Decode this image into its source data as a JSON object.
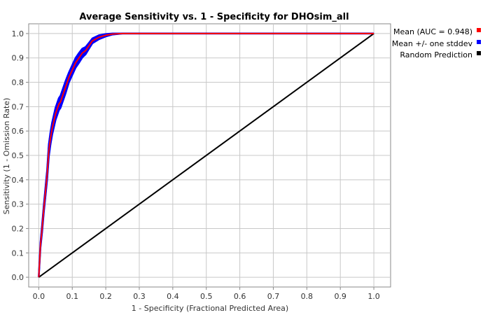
{
  "chart_data": {
    "type": "line",
    "title": "Average Sensitivity vs. 1 - Specificity for DHOsim_all",
    "xlabel": "1 - Specificity (Fractional Predicted Area)",
    "ylabel": "Sensitivity (1 - Omission Rate)",
    "xlim": [
      -0.03,
      1.05
    ],
    "ylim": [
      -0.04,
      1.04
    ],
    "xticks": [
      "0.0",
      "0.1",
      "0.2",
      "0.3",
      "0.4",
      "0.5",
      "0.6",
      "0.7",
      "0.8",
      "0.9",
      "1.0"
    ],
    "yticks": [
      "0.0",
      "0.1",
      "0.2",
      "0.3",
      "0.4",
      "0.5",
      "0.6",
      "0.7",
      "0.8",
      "0.9",
      "1.0"
    ],
    "grid": true,
    "legend_position": "right",
    "series": [
      {
        "name": "Mean (AUC = 0.948)",
        "color": "#ff0000",
        "x": [
          0.0,
          0.005,
          0.01,
          0.015,
          0.02,
          0.025,
          0.03,
          0.035,
          0.04,
          0.045,
          0.05,
          0.055,
          0.06,
          0.065,
          0.07,
          0.075,
          0.08,
          0.09,
          0.1,
          0.11,
          0.12,
          0.13,
          0.14,
          0.15,
          0.16,
          0.18,
          0.2,
          0.22,
          0.25,
          1.0
        ],
        "y": [
          0.0,
          0.13,
          0.2,
          0.28,
          0.35,
          0.42,
          0.52,
          0.57,
          0.61,
          0.64,
          0.67,
          0.69,
          0.71,
          0.72,
          0.74,
          0.76,
          0.78,
          0.82,
          0.85,
          0.88,
          0.9,
          0.92,
          0.93,
          0.95,
          0.97,
          0.985,
          0.993,
          0.998,
          1.0,
          1.0
        ]
      },
      {
        "name": "Mean +/- one stddev",
        "color": "#0000ff",
        "spread": [
          0.0,
          0.01,
          0.015,
          0.015,
          0.018,
          0.02,
          0.025,
          0.025,
          0.025,
          0.025,
          0.025,
          0.025,
          0.025,
          0.025,
          0.025,
          0.025,
          0.025,
          0.02,
          0.02,
          0.02,
          0.02,
          0.018,
          0.015,
          0.012,
          0.01,
          0.008,
          0.005,
          0.002,
          0.0,
          0.0
        ]
      },
      {
        "name": "Random Prediction",
        "color": "#000000",
        "x": [
          0.0,
          1.0
        ],
        "y": [
          0.0,
          1.0
        ]
      }
    ]
  }
}
